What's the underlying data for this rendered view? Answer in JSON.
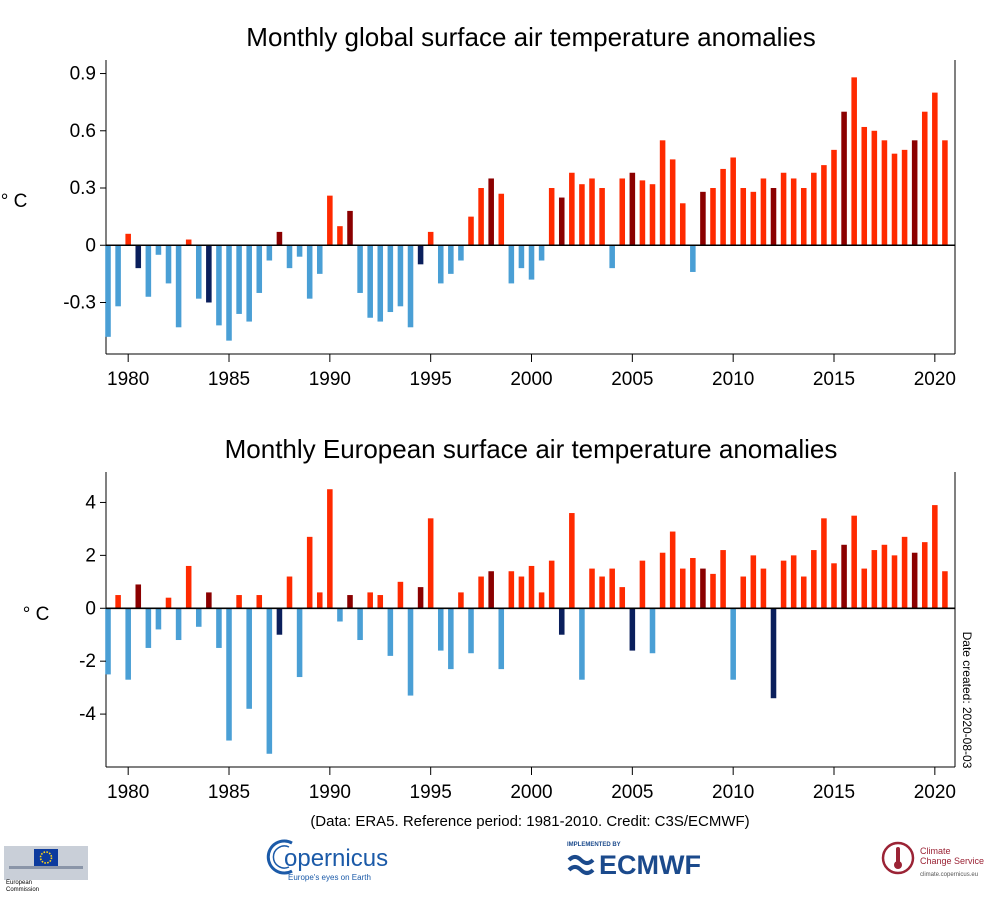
{
  "chart_data": [
    {
      "type": "bar",
      "title": "Monthly global surface air temperature anomalies",
      "ylabel": "° C",
      "ylim": [
        -0.57,
        0.95
      ],
      "yticks": [
        -0.3,
        0,
        0.3,
        0.6,
        0.9
      ],
      "ytick_labels": [
        "-0.3",
        "0",
        "0.3",
        "0.6",
        "0.9"
      ],
      "xlim": [
        1978.9,
        2021.0
      ],
      "xticks": [
        1980,
        1985,
        1990,
        1995,
        2000,
        2005,
        2010,
        2015,
        2020
      ],
      "xtick_labels": [
        "1980",
        "1985",
        "1990",
        "1995",
        "2000",
        "2005",
        "2010",
        "2015",
        "2020"
      ],
      "colors": {
        "positive": "#ff2a00",
        "negative": "#4a9fd5",
        "dark_positive": "#8b0000",
        "dark_negative": "#0a1f5c"
      },
      "series": [
        {
          "x": [
            1979,
            1979.5,
            1980,
            1980.5,
            1981,
            1981.5,
            1982,
            1982.5,
            1983,
            1983.5,
            1984,
            1984.5,
            1985,
            1985.5,
            1986,
            1986.5,
            1987,
            1987.5,
            1988,
            1988.5,
            1989,
            1989.5,
            1990,
            1990.5,
            1991,
            1991.5,
            1992,
            1992.5,
            1993,
            1993.5,
            1994,
            1994.5,
            1995,
            1995.5,
            1996,
            1996.5,
            1997,
            1997.5,
            1998,
            1998.5,
            1999,
            1999.5,
            2000,
            2000.5,
            2001,
            2001.5,
            2002,
            2002.5,
            2003,
            2003.5,
            2004,
            2004.5,
            2005,
            2005.5,
            2006,
            2006.5,
            2007,
            2007.5,
            2008,
            2008.5,
            2009,
            2009.5,
            2010,
            2010.5,
            2011,
            2011.5,
            2012,
            2012.5,
            2013,
            2013.5,
            2014,
            2014.5,
            2015,
            2015.5,
            2016,
            2016.5,
            2017,
            2017.5,
            2018,
            2018.5,
            2019,
            2019.5,
            2020,
            2020.5
          ],
          "values": [
            -0.48,
            -0.32,
            0.06,
            -0.12,
            -0.27,
            -0.05,
            -0.2,
            -0.43,
            0.03,
            -0.28,
            -0.3,
            -0.42,
            -0.5,
            -0.36,
            -0.4,
            -0.25,
            -0.08,
            0.07,
            -0.12,
            -0.06,
            -0.28,
            -0.15,
            0.26,
            0.1,
            0.18,
            -0.25,
            -0.38,
            -0.4,
            -0.35,
            -0.32,
            -0.43,
            -0.1,
            0.07,
            -0.2,
            -0.15,
            -0.08,
            0.15,
            0.3,
            0.35,
            0.27,
            -0.2,
            -0.12,
            -0.18,
            -0.08,
            0.3,
            0.25,
            0.38,
            0.32,
            0.35,
            0.3,
            -0.12,
            0.35,
            0.38,
            0.34,
            0.32,
            0.55,
            0.45,
            0.22,
            -0.14,
            0.28,
            0.3,
            0.4,
            0.46,
            0.3,
            0.28,
            0.35,
            0.3,
            0.38,
            0.35,
            0.3,
            0.38,
            0.42,
            0.5,
            0.7,
            0.88,
            0.62,
            0.6,
            0.55,
            0.48,
            0.5,
            0.55,
            0.7,
            0.8,
            0.55
          ]
        }
      ]
    },
    {
      "type": "bar",
      "title": "Monthly European surface air temperature anomalies",
      "ylabel": "° C",
      "ylim": [
        -6.0,
        5.0
      ],
      "yticks": [
        -4,
        -2,
        0,
        2,
        4
      ],
      "ytick_labels": [
        "-4",
        "-2",
        "0",
        "2",
        "4"
      ],
      "xlim": [
        1978.9,
        2021.0
      ],
      "xticks": [
        1980,
        1985,
        1990,
        1995,
        2000,
        2005,
        2010,
        2015,
        2020
      ],
      "xtick_labels": [
        "1980",
        "1985",
        "1990",
        "1995",
        "2000",
        "2005",
        "2010",
        "2015",
        "2020"
      ],
      "colors": {
        "positive": "#ff2a00",
        "negative": "#4a9fd5",
        "dark_positive": "#8b0000",
        "dark_negative": "#0a1f5c"
      },
      "series": [
        {
          "x": [
            1979,
            1979.5,
            1980,
            1980.5,
            1981,
            1981.5,
            1982,
            1982.5,
            1983,
            1983.5,
            1984,
            1984.5,
            1985,
            1985.5,
            1986,
            1986.5,
            1987,
            1987.5,
            1988,
            1988.5,
            1989,
            1989.5,
            1990,
            1990.5,
            1991,
            1991.5,
            1992,
            1992.5,
            1993,
            1993.5,
            1994,
            1994.5,
            1995,
            1995.5,
            1996,
            1996.5,
            1997,
            1997.5,
            1998,
            1998.5,
            1999,
            1999.5,
            2000,
            2000.5,
            2001,
            2001.5,
            2002,
            2002.5,
            2003,
            2003.5,
            2004,
            2004.5,
            2005,
            2005.5,
            2006,
            2006.5,
            2007,
            2007.5,
            2008,
            2008.5,
            2009,
            2009.5,
            2010,
            2010.5,
            2011,
            2011.5,
            2012,
            2012.5,
            2013,
            2013.5,
            2014,
            2014.5,
            2015,
            2015.5,
            2016,
            2016.5,
            2017,
            2017.5,
            2018,
            2018.5,
            2019,
            2019.5,
            2020,
            2020.5
          ],
          "values": [
            -2.5,
            0.5,
            -2.7,
            0.9,
            -1.5,
            -0.8,
            0.4,
            -1.2,
            1.6,
            -0.7,
            0.6,
            -1.5,
            -5.0,
            0.5,
            -3.8,
            0.5,
            -5.5,
            -1.0,
            1.2,
            -2.6,
            2.7,
            0.6,
            4.5,
            -0.5,
            0.5,
            -1.2,
            0.6,
            0.5,
            -1.8,
            1.0,
            -3.3,
            0.8,
            3.4,
            -1.6,
            -2.3,
            0.6,
            -1.7,
            1.2,
            1.4,
            -2.3,
            1.4,
            1.2,
            1.6,
            0.6,
            1.8,
            -1.0,
            3.6,
            -2.7,
            1.5,
            1.2,
            1.5,
            0.8,
            -1.6,
            1.8,
            -1.7,
            2.1,
            2.9,
            1.5,
            1.9,
            1.5,
            1.3,
            2.2,
            -2.7,
            1.2,
            2.0,
            1.5,
            -3.4,
            1.8,
            2.0,
            1.2,
            2.2,
            3.4,
            1.7,
            2.4,
            3.5,
            1.5,
            2.2,
            2.4,
            2.0,
            2.7,
            2.1,
            2.5,
            3.9,
            1.4
          ]
        }
      ]
    }
  ],
  "credit_line": "(Data: ERA5.  Reference period: 1981-2010.  Credit: C3S/ECMWF)",
  "date_created": "Date created: 2020-08-03",
  "logos": {
    "ec_line1": "European",
    "ec_line2": "Commission",
    "copernicus": "opernicus",
    "copernicus_tagline": "Europe's eyes on Earth",
    "ecmwf_implemented": "IMPLEMENTED BY",
    "ecmwf": "ECMWF",
    "c3s_line1": "Climate",
    "c3s_line2": "Change Service",
    "c3s_url": "climate.copernicus.eu"
  }
}
